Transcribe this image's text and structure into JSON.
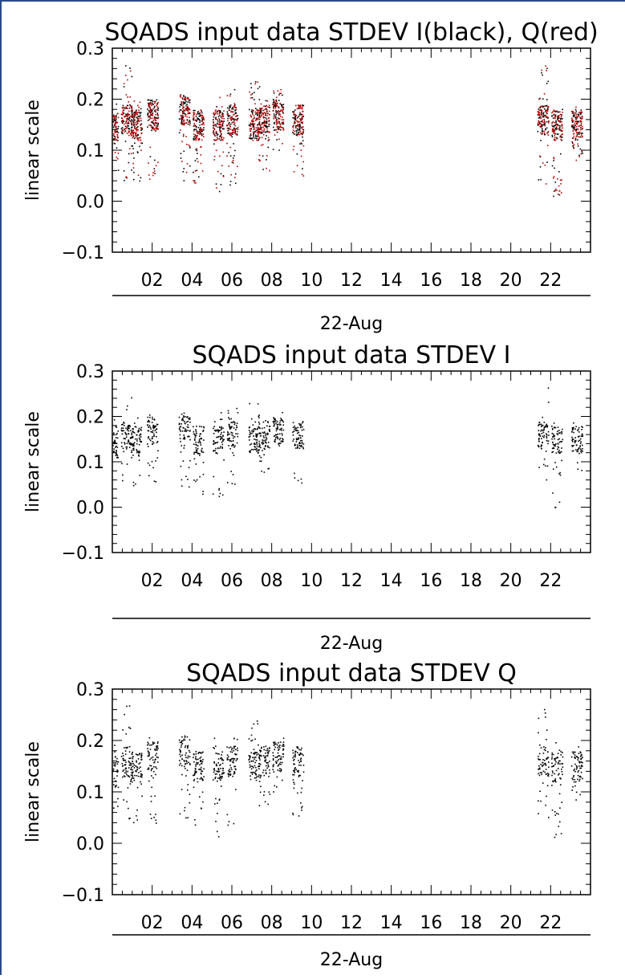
{
  "chart_data": [
    {
      "type": "scatter",
      "title": "SQADS input data STDEV I(black), Q(red)",
      "ylabel": "linear scale",
      "xlabel": "22-Aug",
      "xlim": [
        0,
        24
      ],
      "ylim": [
        -0.1,
        0.3
      ],
      "xticks": [
        "02",
        "04",
        "06",
        "08",
        "10",
        "12",
        "14",
        "16",
        "18",
        "20",
        "22"
      ],
      "yticks": [
        "-0.1",
        "0.0",
        "0.1",
        "0.2",
        "0.3"
      ],
      "grid": false,
      "series": [
        {
          "color": "#000000",
          "segments": [
            [
              0.0,
              0.14,
              0.06,
              0.2
            ],
            [
              0.7,
              0.16,
              0.04,
              0.27
            ],
            [
              1.2,
              0.15,
              0.04,
              0.2
            ],
            [
              2.0,
              0.17,
              0.04,
              0.21
            ],
            [
              3.6,
              0.18,
              0.04,
              0.2
            ],
            [
              4.3,
              0.15,
              0.03,
              0.18
            ],
            [
              5.3,
              0.15,
              0.01,
              0.21
            ],
            [
              6.0,
              0.16,
              0.03,
              0.22
            ],
            [
              7.1,
              0.15,
              0.12,
              0.24
            ],
            [
              7.6,
              0.16,
              0.06,
              0.2
            ],
            [
              8.3,
              0.17,
              0.1,
              0.22
            ],
            [
              9.3,
              0.16,
              0.05,
              0.19
            ],
            [
              21.6,
              0.16,
              0.03,
              0.27
            ],
            [
              22.3,
              0.15,
              0.0,
              0.2
            ],
            [
              23.3,
              0.15,
              0.08,
              0.19
            ]
          ]
        },
        {
          "color": "#c00000",
          "segments": [
            [
              0.0,
              0.14,
              0.06,
              0.2
            ],
            [
              0.7,
              0.16,
              0.04,
              0.27
            ],
            [
              1.2,
              0.15,
              0.04,
              0.2
            ],
            [
              2.0,
              0.17,
              0.04,
              0.21
            ],
            [
              3.6,
              0.18,
              0.04,
              0.2
            ],
            [
              4.3,
              0.15,
              0.03,
              0.18
            ],
            [
              5.3,
              0.15,
              0.01,
              0.21
            ],
            [
              6.0,
              0.16,
              0.03,
              0.22
            ],
            [
              7.1,
              0.15,
              0.12,
              0.24
            ],
            [
              7.6,
              0.16,
              0.06,
              0.2
            ],
            [
              8.3,
              0.17,
              0.1,
              0.22
            ],
            [
              9.3,
              0.16,
              0.05,
              0.19
            ],
            [
              21.6,
              0.16,
              0.03,
              0.27
            ],
            [
              22.3,
              0.15,
              0.0,
              0.2
            ],
            [
              23.3,
              0.15,
              0.08,
              0.19
            ]
          ]
        }
      ]
    },
    {
      "type": "scatter",
      "title": "SQADS input data STDEV I",
      "ylabel": "linear scale",
      "xlabel": "22-Aug",
      "xlim": [
        0,
        24
      ],
      "ylim": [
        -0.1,
        0.3
      ],
      "xticks": [
        "02",
        "04",
        "06",
        "08",
        "10",
        "12",
        "14",
        "16",
        "18",
        "20",
        "22"
      ],
      "yticks": [
        "-0.1",
        "0.0",
        "0.1",
        "0.2",
        "0.3"
      ],
      "grid": false,
      "series": [
        {
          "color": "#000000",
          "segments": [
            [
              0.0,
              0.14,
              0.06,
              0.2
            ],
            [
              0.7,
              0.16,
              0.04,
              0.27
            ],
            [
              1.2,
              0.15,
              0.04,
              0.2
            ],
            [
              2.0,
              0.17,
              0.04,
              0.21
            ],
            [
              3.6,
              0.18,
              0.04,
              0.2
            ],
            [
              4.3,
              0.15,
              0.03,
              0.18
            ],
            [
              5.3,
              0.15,
              0.01,
              0.21
            ],
            [
              6.0,
              0.16,
              0.03,
              0.22
            ],
            [
              7.1,
              0.15,
              0.12,
              0.24
            ],
            [
              7.6,
              0.16,
              0.06,
              0.2
            ],
            [
              8.3,
              0.17,
              0.1,
              0.22
            ],
            [
              9.3,
              0.16,
              0.05,
              0.19
            ],
            [
              21.6,
              0.16,
              0.03,
              0.27
            ],
            [
              22.3,
              0.15,
              0.0,
              0.2
            ],
            [
              23.3,
              0.15,
              0.08,
              0.19
            ]
          ]
        }
      ]
    },
    {
      "type": "scatter",
      "title": "SQADS input data STDEV Q",
      "ylabel": "linear scale",
      "xlabel": "22-Aug",
      "xlim": [
        0,
        24
      ],
      "ylim": [
        -0.1,
        0.3
      ],
      "xticks": [
        "02",
        "04",
        "06",
        "08",
        "10",
        "12",
        "14",
        "16",
        "18",
        "20",
        "22"
      ],
      "yticks": [
        "-0.1",
        "0.0",
        "0.1",
        "0.2",
        "0.3"
      ],
      "grid": false,
      "series": [
        {
          "color": "#000000",
          "segments": [
            [
              0.0,
              0.14,
              0.06,
              0.2
            ],
            [
              0.7,
              0.16,
              0.04,
              0.27
            ],
            [
              1.2,
              0.15,
              0.04,
              0.2
            ],
            [
              2.0,
              0.17,
              0.04,
              0.21
            ],
            [
              3.6,
              0.18,
              0.04,
              0.2
            ],
            [
              4.3,
              0.15,
              0.03,
              0.18
            ],
            [
              5.3,
              0.15,
              0.01,
              0.21
            ],
            [
              6.0,
              0.16,
              0.03,
              0.22
            ],
            [
              7.1,
              0.15,
              0.12,
              0.24
            ],
            [
              7.6,
              0.16,
              0.06,
              0.2
            ],
            [
              8.3,
              0.17,
              0.1,
              0.22
            ],
            [
              9.3,
              0.16,
              0.05,
              0.19
            ],
            [
              21.6,
              0.16,
              0.03,
              0.27
            ],
            [
              22.3,
              0.15,
              0.0,
              0.2
            ],
            [
              23.3,
              0.15,
              0.08,
              0.19
            ]
          ]
        }
      ]
    }
  ]
}
